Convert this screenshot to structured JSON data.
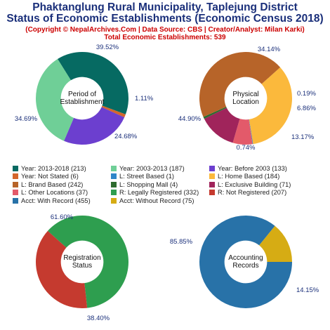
{
  "header": {
    "title_line1": "Phaktanglung Rural Municipality, Taplejung District",
    "title_line2": "Status of Economic Establishments (Economic Census 2018)",
    "subtitle_line1": "(Copyright © NepalArchives.Com | Data Source: CBS | Creator/Analyst: Milan Karki)",
    "subtitle_line2": "Total Economic Establishments: 539"
  },
  "colors": {
    "title": "#1a2f7a",
    "subtitle": "#cc0000",
    "pct_label": "#1a2f7a"
  },
  "chart_data": [
    {
      "type": "pie",
      "center_label": [
        "Period of",
        "Establishment"
      ],
      "start_angle_deg": 238,
      "slices": [
        {
          "name": "Year: 2013-2018",
          "count": 213,
          "pct": 39.52,
          "label": "39.52%",
          "color": "#066a62"
        },
        {
          "name": "Year: Not Stated",
          "count": 6,
          "pct": 1.11,
          "label": "1.11%",
          "color": "#d4662c"
        },
        {
          "name": "Year: Before 2003",
          "count": 133,
          "pct": 24.68,
          "label": "24.68%",
          "color": "#6c3fcf"
        },
        {
          "name": "Year: 2003-2013",
          "count": 187,
          "pct": 34.69,
          "label": "34.69%",
          "color": "#6fcf97"
        }
      ]
    },
    {
      "type": "pie",
      "center_label": [
        "Physical",
        "Location"
      ],
      "start_angle_deg": 318,
      "slices": [
        {
          "name": "L: Home Based",
          "count": 184,
          "pct": 34.14,
          "label": "34.14%",
          "color": "#fbb93c"
        },
        {
          "name": "L: Street Based",
          "count": 1,
          "pct": 0.19,
          "label": "0.19%",
          "color": "#2f86c9"
        },
        {
          "name": "L: Other Locations",
          "count": 37,
          "pct": 6.86,
          "label": "6.86%",
          "color": "#e35a6a"
        },
        {
          "name": "L: Exclusive Building",
          "count": 71,
          "pct": 13.17,
          "label": "13.17%",
          "color": "#a0245b"
        },
        {
          "name": "L: Shopping Mall",
          "count": 4,
          "pct": 0.74,
          "label": "0.74%",
          "color": "#2d6b2e"
        },
        {
          "name": "L: Brand Based",
          "count": 242,
          "pct": 44.9,
          "label": "44.90%",
          "color": "#b76429"
        }
      ]
    },
    {
      "type": "pie",
      "center_label": [
        "Registration",
        "Status"
      ],
      "start_angle_deg": 222,
      "slices": [
        {
          "name": "R: Legally Registered",
          "count": 332,
          "pct": 61.6,
          "label": "61.60%",
          "color": "#2e9e4f"
        },
        {
          "name": "R: Not Registered",
          "count": 207,
          "pct": 38.4,
          "label": "38.40%",
          "color": "#c53a2f"
        }
      ]
    },
    {
      "type": "pie",
      "center_label": [
        "Accounting",
        "Records"
      ],
      "start_angle_deg": 0,
      "slices": [
        {
          "name": "Acct: With Record",
          "count": 455,
          "pct": 85.85,
          "label": "85.85%",
          "color": "#2872a8"
        },
        {
          "name": "Acct: Without Record",
          "count": 75,
          "pct": 14.15,
          "label": "14.15%",
          "color": "#d6ac14"
        }
      ]
    }
  ],
  "legend": [
    [
      {
        "label": "Year: 2013-2018 (213)",
        "color": "#066a62"
      },
      {
        "label": "Year: 2003-2013 (187)",
        "color": "#6fcf97"
      },
      {
        "label": "Year: Before 2003 (133)",
        "color": "#6c3fcf"
      }
    ],
    [
      {
        "label": "Year: Not Stated (6)",
        "color": "#d4662c"
      },
      {
        "label": "L: Street Based (1)",
        "color": "#2f86c9"
      },
      {
        "label": "L: Home Based (184)",
        "color": "#fbb93c"
      }
    ],
    [
      {
        "label": "L: Brand Based (242)",
        "color": "#b76429"
      },
      {
        "label": "L: Shopping Mall (4)",
        "color": "#2d6b2e"
      },
      {
        "label": "L: Exclusive Building (71)",
        "color": "#a0245b"
      }
    ],
    [
      {
        "label": "L: Other Locations (37)",
        "color": "#e35a6a"
      },
      {
        "label": "R: Legally Registered (332)",
        "color": "#2e9e4f"
      },
      {
        "label": "R: Not Registered (207)",
        "color": "#c53a2f"
      }
    ],
    [
      {
        "label": "Acct: With Record (455)",
        "color": "#2872a8"
      },
      {
        "label": "Acct: Without Record (75)",
        "color": "#d6ac14"
      }
    ]
  ]
}
